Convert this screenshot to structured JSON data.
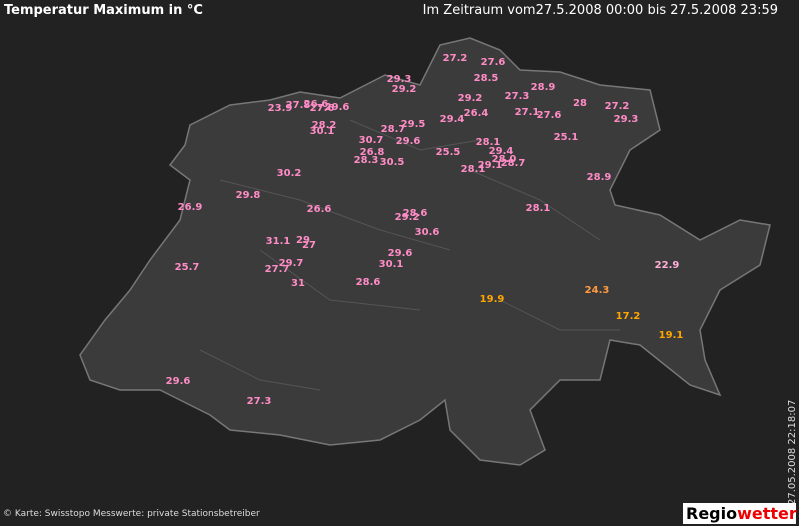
{
  "header": {
    "title": "Temperatur Maximum in °C",
    "period": "Im Zeitraum vom27.5.2008 00:00 bis 27.5.2008 23:59"
  },
  "stations": [
    {
      "label": "27.2",
      "color": "#ff8cc6"
    },
    {
      "label": "27.6",
      "color": "#ff8cc6"
    },
    {
      "label": "28.5",
      "color": "#ff8cc6"
    },
    {
      "label": "29.3",
      "color": "#ff8cc6"
    },
    {
      "label": "29.2",
      "color": "#ff8cc6"
    },
    {
      "label": "28.9",
      "color": "#ff8cc6"
    },
    {
      "label": "27.3",
      "color": "#ff8cc6"
    },
    {
      "label": "29.2",
      "color": "#ff8cc6"
    },
    {
      "label": "28",
      "color": "#ff8cc6"
    },
    {
      "label": "27.2",
      "color": "#ff8cc6"
    },
    {
      "label": "23.9",
      "color": "#ff8cc6"
    },
    {
      "label": "27.8",
      "color": "#ff8cc6"
    },
    {
      "label": "26.6",
      "color": "#ff8cc6"
    },
    {
      "label": "27.6",
      "color": "#ff8cc6"
    },
    {
      "label": "29.6",
      "color": "#ff8cc6"
    },
    {
      "label": "26.4",
      "color": "#ff8cc6"
    },
    {
      "label": "27.1",
      "color": "#ff8cc6"
    },
    {
      "label": "27.6",
      "color": "#ff8cc6"
    },
    {
      "label": "29.3",
      "color": "#ff8cc6"
    },
    {
      "label": "29.4",
      "color": "#ff8cc6"
    },
    {
      "label": "28.2",
      "color": "#ff8cc6"
    },
    {
      "label": "30.1",
      "color": "#ff8cc6"
    },
    {
      "label": "28.7",
      "color": "#ff8cc6"
    },
    {
      "label": "29.5",
      "color": "#ff8cc6"
    },
    {
      "label": "25.1",
      "color": "#ff8cc6"
    },
    {
      "label": "30.7",
      "color": "#ff8cc6"
    },
    {
      "label": "29.6",
      "color": "#ff8cc6"
    },
    {
      "label": "28.1",
      "color": "#ff8cc6"
    },
    {
      "label": "26.8",
      "color": "#ff8cc6"
    },
    {
      "label": "25.5",
      "color": "#ff8cc6"
    },
    {
      "label": "29.4",
      "color": "#ff8cc6"
    },
    {
      "label": "28.3",
      "color": "#ff8cc6"
    },
    {
      "label": "30.5",
      "color": "#ff8cc6"
    },
    {
      "label": "28.0",
      "color": "#ff8cc6"
    },
    {
      "label": "29.1",
      "color": "#ff8cc6"
    },
    {
      "label": "28.1",
      "color": "#ff8cc6"
    },
    {
      "label": "28.7",
      "color": "#ff8cc6"
    },
    {
      "label": "30.2",
      "color": "#ff8cc6"
    },
    {
      "label": "28.9",
      "color": "#ff8cc6"
    },
    {
      "label": "29.8",
      "color": "#ff8cc6"
    },
    {
      "label": "26.9",
      "color": "#ff8cc6"
    },
    {
      "label": "26.6",
      "color": "#ff8cc6"
    },
    {
      "label": "28.1",
      "color": "#ff8cc6"
    },
    {
      "label": "28.6",
      "color": "#ff8cc6"
    },
    {
      "label": "29.2",
      "color": "#ff8cc6"
    },
    {
      "label": "30.6",
      "color": "#ff8cc6"
    },
    {
      "label": "31.1",
      "color": "#ff8cc6"
    },
    {
      "label": "29",
      "color": "#ff8cc6"
    },
    {
      "label": "27",
      "color": "#ff8cc6"
    },
    {
      "label": "29.6",
      "color": "#ff8cc6"
    },
    {
      "label": "22.9",
      "color": "#ffb0d8"
    },
    {
      "label": "30.1",
      "color": "#ff8cc6"
    },
    {
      "label": "29.7",
      "color": "#ff8cc6"
    },
    {
      "label": "25.7",
      "color": "#ff8cc6"
    },
    {
      "label": "27.7",
      "color": "#ff8cc6"
    },
    {
      "label": "31",
      "color": "#ff8cc6"
    },
    {
      "label": "28.6",
      "color": "#ff8cc6"
    },
    {
      "label": "24.3",
      "color": "#ff9a40"
    },
    {
      "label": "19.9",
      "color": "#ffa500"
    },
    {
      "label": "17.2",
      "color": "#ffa500"
    },
    {
      "label": "19.1",
      "color": "#ffa500"
    },
    {
      "label": "29.6",
      "color": "#ff8cc6"
    },
    {
      "label": "27.3",
      "color": "#ff8cc6"
    }
  ],
  "footer": {
    "credit": "© Karte: Swisstopo Messwerte: private Stationsbetreiber",
    "timestamp": "27.05.2008 22:18:07",
    "logo_a": "Regio",
    "logo_b": "wetter"
  }
}
